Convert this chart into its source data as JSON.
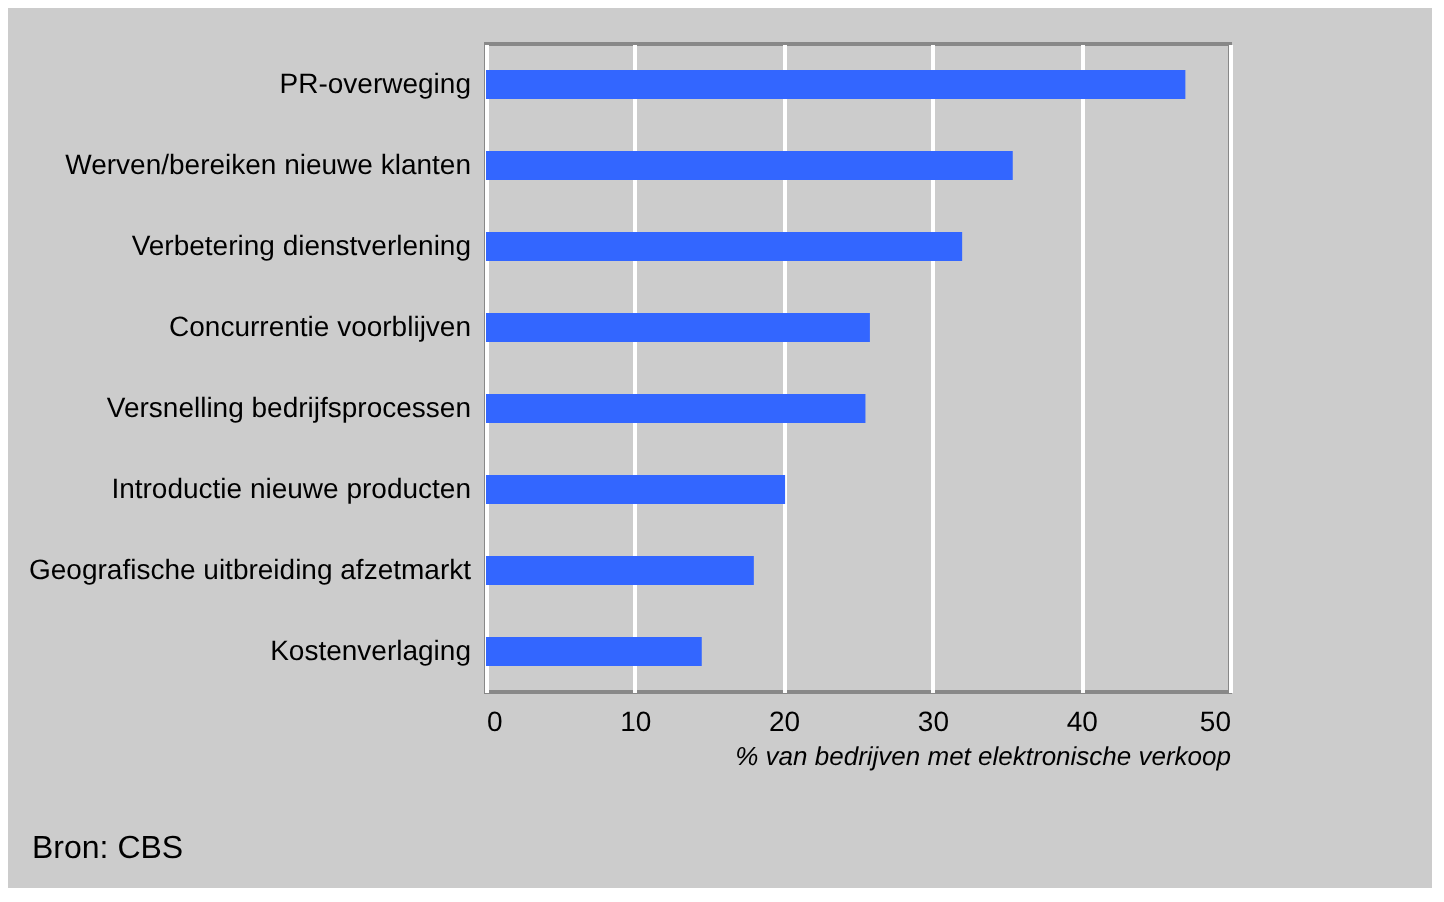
{
  "chart_data": {
    "type": "bar",
    "orientation": "horizontal",
    "categories": [
      "PR-overweging",
      "Werven/bereiken nieuwe klanten",
      "Verbetering dienstverlening",
      "Concurrentie voorblijven",
      "Versnelling bedrijfsprocessen",
      "Introductie nieuwe producten",
      "Geografische uitbreiding afzetmarkt",
      "Kostenverlaging"
    ],
    "values": [
      47.0,
      35.4,
      32.0,
      25.8,
      25.5,
      20.1,
      18.0,
      14.5
    ],
    "color": "#3366ff",
    "xlim": [
      0,
      50
    ],
    "xticks": [
      0,
      10,
      20,
      30,
      40,
      50
    ],
    "grid": "x",
    "xlabel": "% van bedrijven met elektronische verkoop",
    "annotations": [
      "Bron: CBS"
    ]
  }
}
